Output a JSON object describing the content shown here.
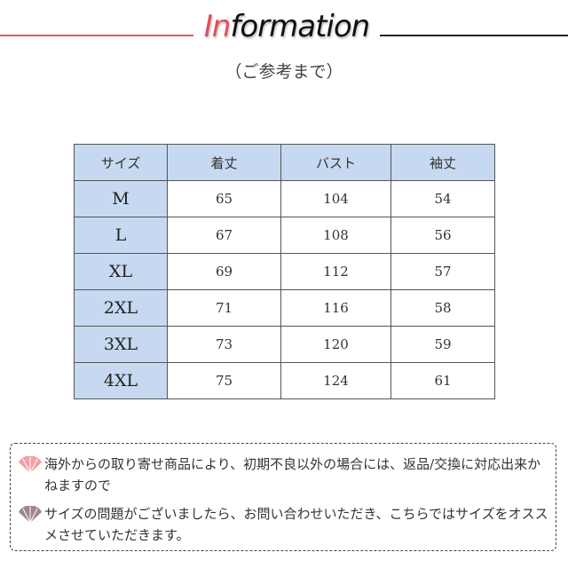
{
  "header": {
    "title_accent": "In",
    "title_rest": "formation",
    "subtitle": "（ご参考まで）",
    "accent_color": "#e0505a"
  },
  "table": {
    "columns": [
      "サイズ",
      "着丈",
      "バスト",
      "袖丈"
    ],
    "rows": [
      [
        "M",
        "65",
        "104",
        "54"
      ],
      [
        "L",
        "67",
        "108",
        "56"
      ],
      [
        "XL",
        "69",
        "112",
        "57"
      ],
      [
        "2XL",
        "71",
        "116",
        "58"
      ],
      [
        "3XL",
        "73",
        "120",
        "59"
      ],
      [
        "4XL",
        "75",
        "124",
        "61"
      ]
    ]
  },
  "notes": [
    {
      "icon": "fan-icon",
      "color": "#f0a0a8",
      "text": "海外からの取り寄せ商品により、初期不良以外の場合には、返品/交換に対応出来かねますので"
    },
    {
      "icon": "fan-icon",
      "color": "#a08888",
      "text": "サイズの問題がございましたら、お問い合わせいただき、こちらではサイズをオススメさせていただきます。"
    }
  ]
}
